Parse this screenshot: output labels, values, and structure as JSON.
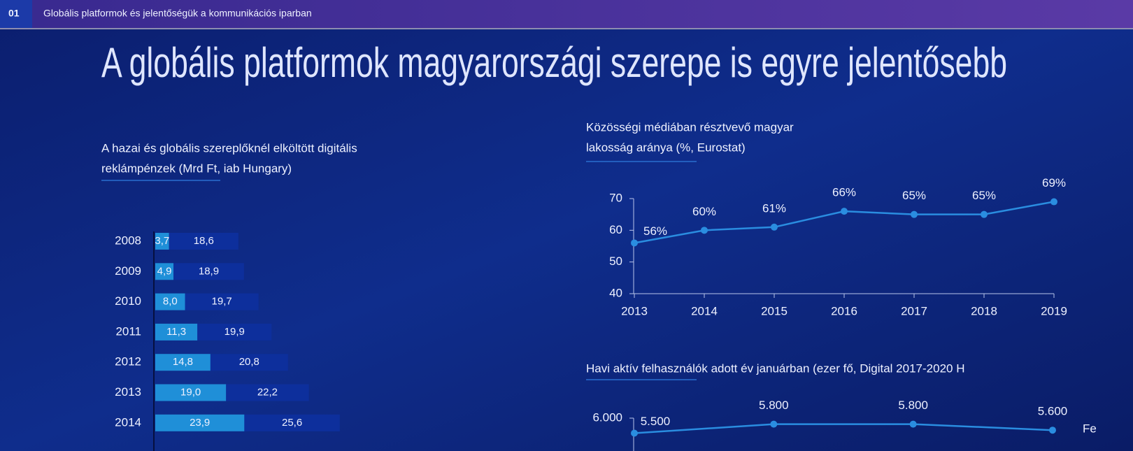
{
  "header": {
    "number": "01",
    "title": "Globális platformok és jelentőségük a kommunikációs iparban"
  },
  "title": "A globális platformok magyarországi szerepe is egyre jelentősebb",
  "chart_data": [
    {
      "type": "bar",
      "orientation": "horizontal",
      "stacked": true,
      "title": [
        "A hazai és globális szereplőknél elköltött digitális",
        "reklámpénzek (Mrd Ft, iab Hungary)"
      ],
      "categories": [
        "2008",
        "2009",
        "2010",
        "2011",
        "2012",
        "2013",
        "2014"
      ],
      "series": [
        {
          "color": "#1f8fd8",
          "values": [
            3.7,
            4.9,
            8.0,
            11.3,
            14.8,
            19.0,
            23.9
          ],
          "value_labels": [
            "3,7",
            "4,9",
            "8,0",
            "11,3",
            "14,8",
            "19,0",
            "23,9"
          ]
        },
        {
          "color": "#0d2f9c",
          "values": [
            18.6,
            18.9,
            19.7,
            19.9,
            20.8,
            22.2,
            25.6
          ],
          "value_labels": [
            "18,6",
            "18,9",
            "19,7",
            "19,9",
            "20,8",
            "22,2",
            "25,6"
          ]
        }
      ]
    },
    {
      "type": "line",
      "title": [
        "Közösségi médiában résztvevő magyar",
        "lakosság aránya (%, Eurostat)"
      ],
      "x": [
        2013,
        2014,
        2015,
        2016,
        2017,
        2018,
        2019
      ],
      "values": [
        56,
        60,
        61,
        66,
        65,
        65,
        69
      ],
      "value_labels": [
        "56%",
        "60%",
        "61%",
        "66%",
        "65%",
        "65%",
        "69%"
      ],
      "color": "#2a8de0",
      "xlim": [
        2013,
        2019
      ],
      "xticks": [
        2013,
        2014,
        2015,
        2016,
        2017,
        2018,
        2019
      ],
      "ylim": [
        40,
        70
      ],
      "yticks": [
        40,
        50,
        60,
        70
      ]
    },
    {
      "type": "line",
      "title": "Havi aktív felhasználók adott év januárban (ezer fő, Digital 2017-2020 H",
      "categories": [
        null,
        null,
        null,
        null
      ],
      "series": [
        {
          "name": "Fe",
          "color": "#2a8de0",
          "values": [
            5500,
            5800,
            5800,
            5600
          ],
          "value_labels": [
            "5.500",
            "5.800",
            "5.800",
            "5.600"
          ]
        }
      ],
      "ylim": [
        5000,
        6000
      ],
      "yticks": [
        {
          "value": 6000,
          "label": "6.000"
        }
      ]
    }
  ]
}
